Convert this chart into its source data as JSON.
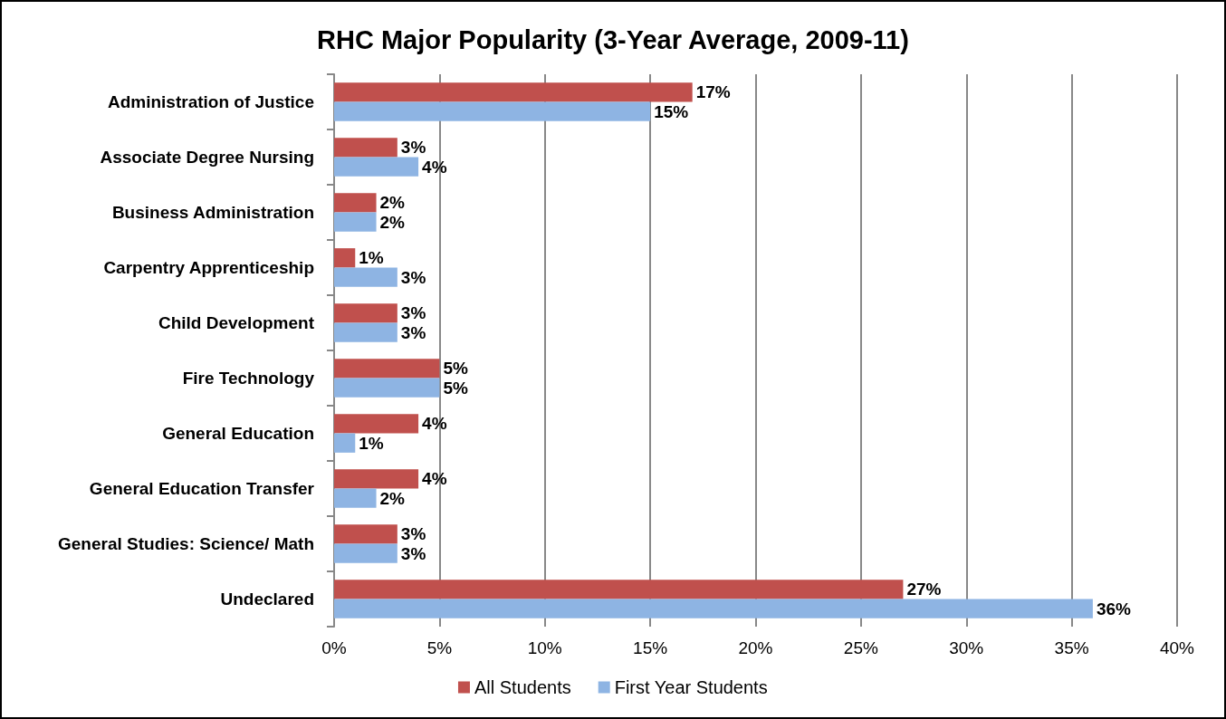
{
  "chart_data": {
    "type": "bar",
    "orientation": "horizontal",
    "title": "RHC Major Popularity (3-Year Average, 2009-11)",
    "categories": [
      "Administration of Justice",
      "Associate Degree Nursing",
      "Business Administration",
      "Carpentry Apprenticeship",
      "Child Development",
      "Fire Technology",
      "General Education",
      "General Education Transfer",
      "General Studies: Science/ Math",
      "Undeclared"
    ],
    "series": [
      {
        "name": "All Students",
        "color": "#c0504d",
        "values": [
          17,
          3,
          2,
          1,
          3,
          5,
          4,
          4,
          3,
          27
        ],
        "value_labels": [
          "17%",
          "3%",
          "2%",
          "1%",
          "3%",
          "5%",
          "4%",
          "4%",
          "3%",
          "27%"
        ]
      },
      {
        "name": "First Year Students",
        "color": "#8eb4e3",
        "values": [
          15,
          4,
          2,
          3,
          3,
          5,
          1,
          2,
          3,
          36
        ],
        "value_labels": [
          "15%",
          "4%",
          "2%",
          "3%",
          "3%",
          "5%",
          "1%",
          "2%",
          "3%",
          "36%"
        ]
      }
    ],
    "xlim": [
      0,
      40
    ],
    "xticks": [
      {
        "value": 0,
        "label": "0%"
      },
      {
        "value": 5,
        "label": "5%"
      },
      {
        "value": 10,
        "label": "10%"
      },
      {
        "value": 15,
        "label": "15%"
      },
      {
        "value": 20,
        "label": "20%"
      },
      {
        "value": 25,
        "label": "25%"
      },
      {
        "value": 30,
        "label": "30%"
      },
      {
        "value": 35,
        "label": "35%"
      },
      {
        "value": 40,
        "label": "40%"
      }
    ],
    "grid": "x",
    "legend": "bottom"
  }
}
